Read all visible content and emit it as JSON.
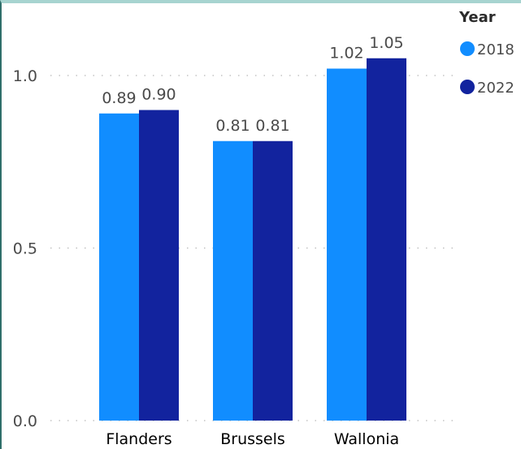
{
  "chart_data": {
    "type": "bar",
    "categories": [
      "Flanders",
      "Brussels",
      "Wallonia"
    ],
    "series": [
      {
        "name": "2018",
        "values": [
          0.89,
          0.81,
          1.02
        ],
        "color": "#118dff",
        "labels": [
          "0.89",
          "0.81",
          "1.02"
        ]
      },
      {
        "name": "2022",
        "values": [
          0.9,
          0.81,
          1.05
        ],
        "color": "#12239e",
        "labels": [
          "0.90",
          "0.81",
          "1.05"
        ]
      }
    ],
    "title": "",
    "xlabel": "",
    "ylabel": "",
    "ylim": [
      0,
      1.21
    ],
    "yticks": [
      0,
      0.5,
      1.0
    ],
    "ytick_labels": [
      "0.0",
      "0.5",
      "1.0"
    ],
    "grid": true,
    "legend": {
      "title": "Year",
      "position": "top-right"
    }
  }
}
